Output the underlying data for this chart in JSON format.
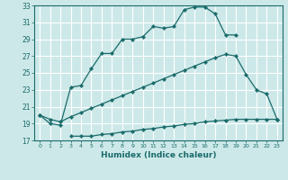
{
  "xlabel": "Humidex (Indice chaleur)",
  "bg_color": "#cde8e8",
  "grid_color": "#ffffff",
  "line_color": "#1a6b6b",
  "xlim": [
    -0.5,
    23.5
  ],
  "ylim": [
    17,
    33
  ],
  "xticks": [
    0,
    1,
    2,
    3,
    4,
    5,
    6,
    7,
    8,
    9,
    10,
    11,
    12,
    13,
    14,
    15,
    16,
    17,
    18,
    19,
    20,
    21,
    22,
    23
  ],
  "yticks": [
    17,
    19,
    21,
    23,
    25,
    27,
    29,
    31,
    33
  ],
  "line1_x": [
    0,
    1,
    2,
    3,
    4,
    5,
    6,
    7,
    8,
    9,
    10,
    11,
    12,
    13,
    14,
    15,
    16,
    17,
    18,
    19
  ],
  "line1_y": [
    20.0,
    19.0,
    18.8,
    23.3,
    23.5,
    25.5,
    27.3,
    27.3,
    29.0,
    29.0,
    29.3,
    30.5,
    30.3,
    30.5,
    32.5,
    32.8,
    32.8,
    32.0,
    29.5,
    29.5
  ],
  "line2_x": [
    0,
    1,
    2,
    3,
    4,
    5,
    6,
    7,
    8,
    9,
    10,
    11,
    12,
    13,
    14,
    15,
    16,
    17,
    18,
    19,
    20,
    21,
    22,
    23
  ],
  "line2_y": [
    20.0,
    19.5,
    19.2,
    19.8,
    20.3,
    20.8,
    21.3,
    21.8,
    22.3,
    22.8,
    23.3,
    23.8,
    24.3,
    24.8,
    25.3,
    25.8,
    26.3,
    26.8,
    27.2,
    27.0,
    24.8,
    23.0,
    22.5,
    19.5
  ],
  "line3_x": [
    3,
    4,
    5,
    6,
    7,
    8,
    9,
    10,
    11,
    12,
    13,
    14,
    15,
    16,
    17,
    18,
    19,
    20,
    21,
    22,
    23
  ],
  "line3_y": [
    17.5,
    17.5,
    17.5,
    17.7,
    17.8,
    18.0,
    18.1,
    18.3,
    18.4,
    18.6,
    18.7,
    18.9,
    19.0,
    19.2,
    19.3,
    19.4,
    19.5,
    19.5,
    19.5,
    19.5,
    19.5
  ]
}
